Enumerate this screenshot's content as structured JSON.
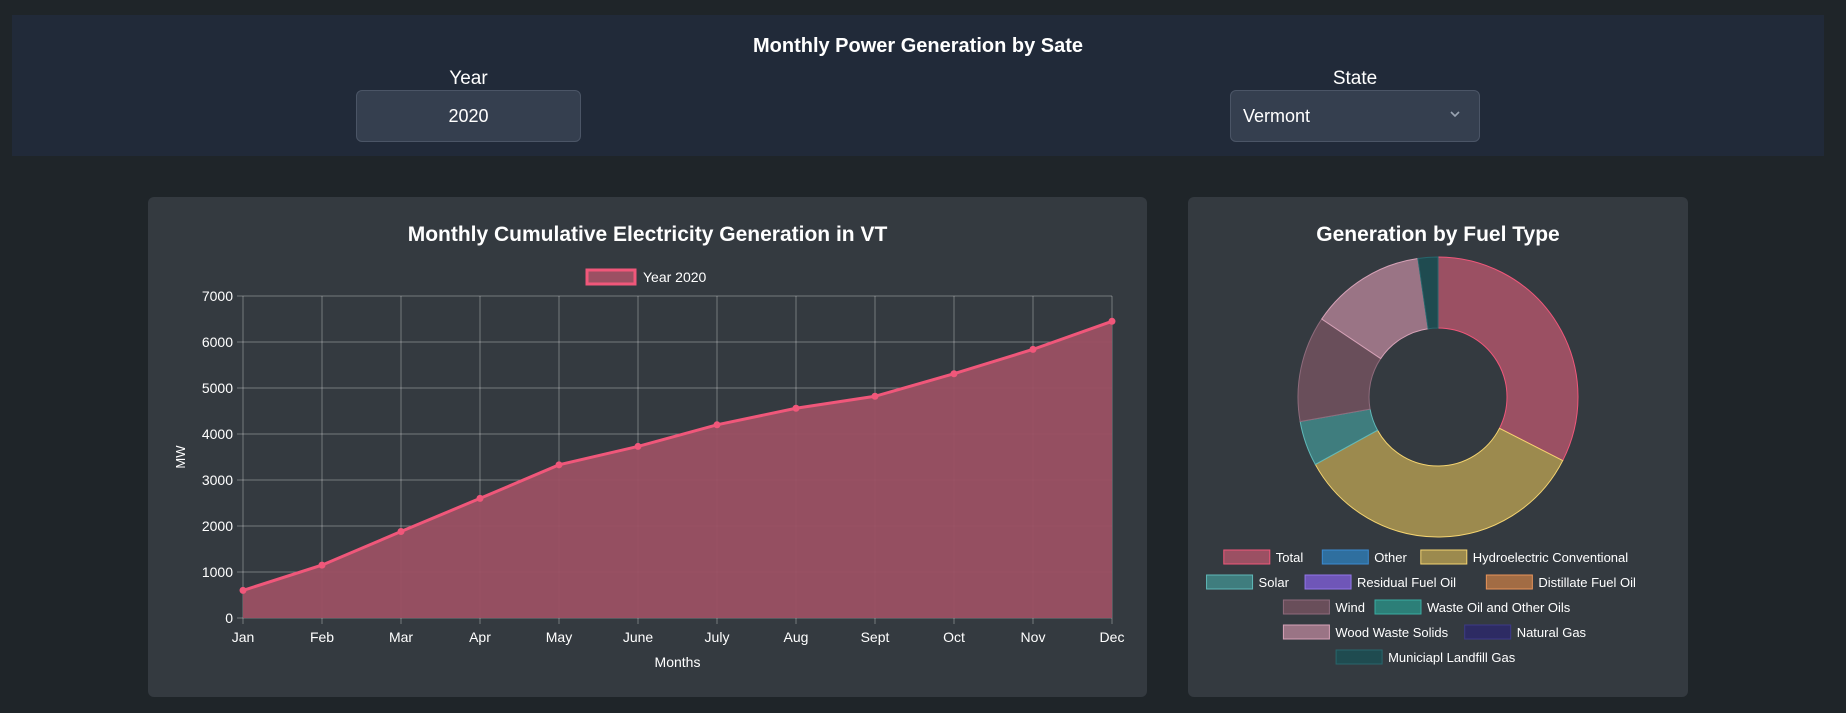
{
  "header": {
    "title": "Monthly Power Generation by Sate",
    "year_label": "Year",
    "year_value": "2020",
    "state_label": "State",
    "state_value": "Vermont"
  },
  "chart_data": [
    {
      "type": "area",
      "title": "Monthly Cumulative Electricity Generation in VT",
      "xlabel": "Months",
      "ylabel": "MW",
      "ylim": [
        0,
        7000
      ],
      "yticks": [
        0,
        1000,
        2000,
        3000,
        4000,
        5000,
        6000,
        7000
      ],
      "grid": true,
      "legend_position": "top-center",
      "categories": [
        "Jan",
        "Feb",
        "Mar",
        "Apr",
        "May",
        "June",
        "July",
        "Aug",
        "Sept",
        "Oct",
        "Nov",
        "Dec"
      ],
      "series": [
        {
          "name": "Year 2020",
          "color": "#f0577a",
          "fill": "#9b5063",
          "values": [
            600,
            1150,
            1880,
            2600,
            3330,
            3730,
            4200,
            4560,
            4820,
            5310,
            5840,
            6450
          ]
        }
      ]
    },
    {
      "type": "pie",
      "title": "Generation by Fuel Type",
      "donut": true,
      "legend_position": "bottom",
      "slices": [
        {
          "label": "Total",
          "value": 32.5,
          "color": "#9b5063",
          "border": "#f0577a"
        },
        {
          "label": "Other",
          "value": 0,
          "color": "#2f6f9f",
          "border": "#3b8bd0"
        },
        {
          "label": "Hydroelectric Conventional",
          "value": 34.5,
          "color": "#9c8a4e",
          "border": "#f5d470"
        },
        {
          "label": "Solar",
          "value": 5.2,
          "color": "#3f7d7e",
          "border": "#5fb8b8"
        },
        {
          "label": "Residual Fuel Oil",
          "value": 0,
          "color": "#6f56b8",
          "border": "#9277e8"
        },
        {
          "label": "Distillate Fuel Oil",
          "value": 0,
          "color": "#a26c44",
          "border": "#e7935a"
        },
        {
          "label": "Wind",
          "value": 12.2,
          "color": "#694e5a",
          "border": "#8e6b7c"
        },
        {
          "label": "Waste Oil and Other Oils",
          "value": 0,
          "color": "#2c7f78",
          "border": "#3aaca2"
        },
        {
          "label": "Wood Waste Solids",
          "value": 13.3,
          "color": "#9a7485",
          "border": "#d6a2b7"
        },
        {
          "label": "Natural Gas",
          "value": 0,
          "color": "#2d2b63",
          "border": "#3d3a87"
        },
        {
          "label": "Municiapl Landfill Gas",
          "value": 2.3,
          "color": "#1f4b50",
          "border": "#28666c"
        }
      ]
    }
  ]
}
